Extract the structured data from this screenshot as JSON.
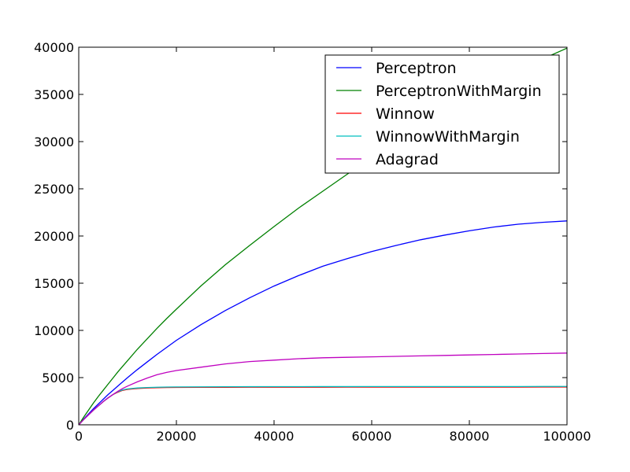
{
  "chart_data": {
    "type": "line",
    "title": "",
    "xlabel": "",
    "ylabel": "",
    "xlim": [
      0,
      100000
    ],
    "ylim": [
      0,
      40000
    ],
    "x_ticks": [
      0,
      20000,
      40000,
      60000,
      80000,
      100000
    ],
    "x_tick_labels": [
      "0",
      "20000",
      "40000",
      "60000",
      "80000",
      "100000"
    ],
    "y_ticks": [
      0,
      5000,
      10000,
      15000,
      20000,
      25000,
      30000,
      35000,
      40000
    ],
    "y_tick_labels": [
      "0",
      "5000",
      "10000",
      "15000",
      "20000",
      "25000",
      "30000",
      "35000",
      "40000"
    ],
    "grid": false,
    "legend_position": "top-right",
    "x": [
      0,
      1000,
      2000,
      3000,
      4000,
      5000,
      6000,
      7000,
      8000,
      9000,
      10000,
      12000,
      14000,
      16000,
      18000,
      20000,
      25000,
      30000,
      35000,
      40000,
      45000,
      50000,
      55000,
      60000,
      65000,
      70000,
      75000,
      80000,
      85000,
      90000,
      95000,
      100000
    ],
    "series": [
      {
        "name": "Perceptron",
        "color": "#0000ff",
        "values": [
          0,
          600,
          1150,
          1700,
          2200,
          2700,
          3200,
          3650,
          4100,
          4550,
          5000,
          5850,
          6650,
          7450,
          8200,
          8950,
          10600,
          12100,
          13450,
          14700,
          15800,
          16800,
          17600,
          18350,
          19000,
          19600,
          20100,
          20550,
          20950,
          21250,
          21450,
          21600
        ]
      },
      {
        "name": "PerceptronWithMargin",
        "color": "#008000",
        "values": [
          0,
          800,
          1550,
          2300,
          3000,
          3650,
          4300,
          4950,
          5600,
          6200,
          6800,
          8000,
          9100,
          10200,
          11250,
          12250,
          14700,
          16950,
          19000,
          21000,
          22950,
          24750,
          26550,
          28300,
          29950,
          31600,
          33200,
          34750,
          36200,
          37550,
          38750,
          39900
        ]
      },
      {
        "name": "Winnow",
        "color": "#ff0000",
        "values": [
          0,
          550,
          1050,
          1550,
          2000,
          2450,
          2850,
          3200,
          3450,
          3650,
          3750,
          3850,
          3900,
          3930,
          3950,
          3960,
          3970,
          3975,
          3980,
          3980,
          3985,
          3985,
          3990,
          3990,
          3990,
          3990,
          3990,
          3995,
          3995,
          3995,
          4000,
          4000
        ]
      },
      {
        "name": "WinnowWithMargin",
        "color": "#00bfbf",
        "values": [
          0,
          550,
          1050,
          1550,
          2000,
          2450,
          2850,
          3200,
          3500,
          3700,
          3800,
          3900,
          3950,
          3980,
          4000,
          4010,
          4020,
          4030,
          4035,
          4040,
          4040,
          4045,
          4045,
          4050,
          4050,
          4050,
          4050,
          4055,
          4055,
          4055,
          4060,
          4060
        ]
      },
      {
        "name": "Adagrad",
        "color": "#bf00bf",
        "values": [
          0,
          550,
          1050,
          1550,
          2000,
          2450,
          2850,
          3200,
          3550,
          3850,
          4100,
          4550,
          4950,
          5300,
          5550,
          5750,
          6100,
          6450,
          6700,
          6850,
          7000,
          7100,
          7150,
          7200,
          7250,
          7300,
          7350,
          7400,
          7450,
          7500,
          7550,
          7600
        ]
      }
    ]
  }
}
